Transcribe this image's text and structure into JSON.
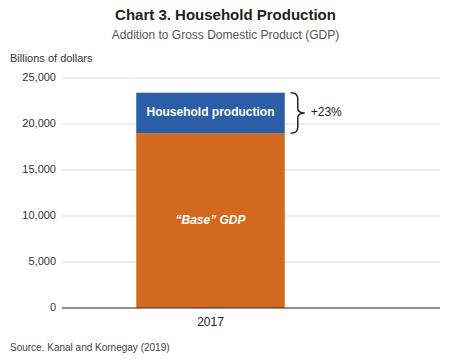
{
  "chart_data": {
    "type": "bar",
    "stacked": true,
    "title": "Chart 3. Household Production",
    "subtitle": "Addition to Gross Domestic Product (GDP)",
    "y_label": "Billions of dollars",
    "source": "Source. Kanal and Kornegay (2019)",
    "annotation": "+23%",
    "categories": [
      "2017"
    ],
    "series": [
      {
        "name": "“Base” GDP",
        "color": "#D2691E",
        "values": [
          19000
        ]
      },
      {
        "name": "Household production",
        "color": "#2B5EA7",
        "values": [
          4400
        ]
      }
    ],
    "ylim": [
      0,
      25000
    ],
    "yticks": [
      0,
      {
        "value": 5000,
        "label": "5,000"
      },
      {
        "value": 10000,
        "label": "10,000"
      },
      {
        "value": 15000,
        "label": "15,000"
      },
      {
        "value": 20000,
        "label": "20,000"
      },
      {
        "value": 25000,
        "label": "25,000"
      }
    ],
    "grid": true
  }
}
